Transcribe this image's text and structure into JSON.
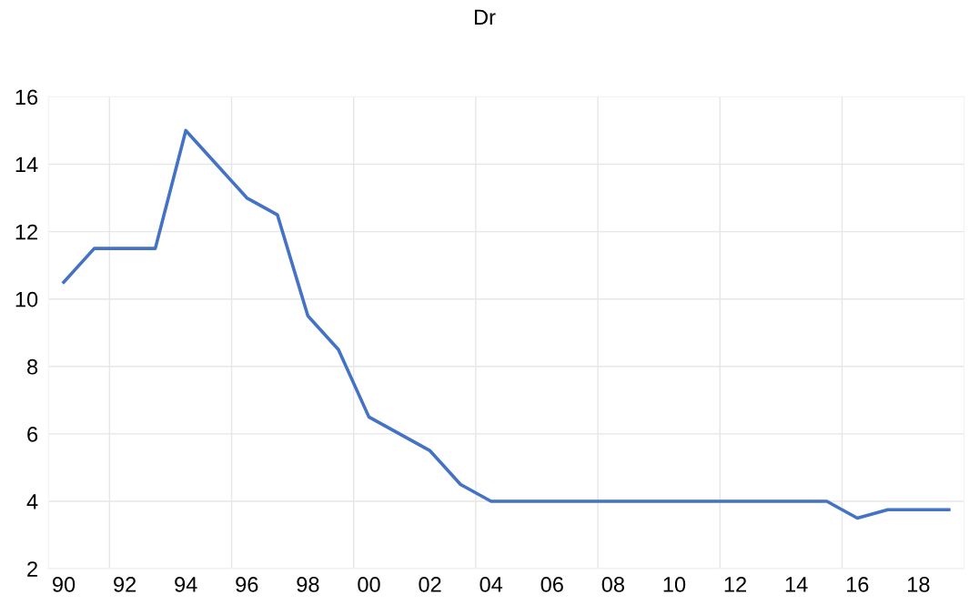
{
  "chart_data": {
    "type": "line",
    "title": "Dr",
    "categories": [
      "90",
      null,
      "92",
      null,
      "94",
      null,
      "96",
      null,
      "98",
      null,
      "00",
      null,
      "02",
      null,
      "04",
      null,
      "06",
      null,
      "08",
      null,
      "10",
      null,
      "12",
      null,
      "14",
      null,
      "16",
      null,
      "18",
      null
    ],
    "series": [
      {
        "color": "#4472c4",
        "values": [
          10.5,
          11.5,
          11.5,
          11.5,
          15,
          14,
          13,
          12.5,
          9.5,
          8.5,
          6.5,
          6,
          5.5,
          4.5,
          4,
          4,
          4,
          4,
          4,
          4,
          4,
          4,
          4,
          4,
          4,
          4,
          3.5,
          3.75,
          3.75,
          3.75
        ]
      }
    ],
    "ylim": [
      2,
      16
    ],
    "yticks": [
      2,
      4,
      6,
      8,
      10,
      12,
      14,
      16
    ],
    "grid": true,
    "marker": "none",
    "line_style": "solid"
  }
}
